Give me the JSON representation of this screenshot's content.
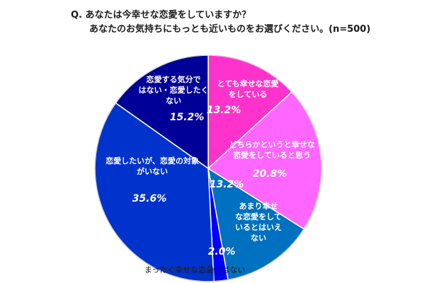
{
  "header": {
    "q_prefix": "Q.",
    "line1": "あなたは今幸せな恋愛をしていますか？",
    "line2": "あなたのお気持ちにもっとも近いものをお選びください。(n=500)"
  },
  "chart_data": {
    "type": "pie",
    "slices": [
      {
        "label_lines": [
          "とても幸せな恋愛",
          "をしている"
        ],
        "value": 13.2,
        "value_label": "13.2%",
        "color": "#ff33cc"
      },
      {
        "label_lines": [
          "どちらかというと幸せな",
          "恋愛をしていると思う"
        ],
        "value": 20.8,
        "value_label": "20.8%",
        "color": "#ff66ff"
      },
      {
        "label_lines": [
          "あまり幸せ",
          "な恋愛をして",
          "いるとはいえ",
          "ない"
        ],
        "value": 13.2,
        "value_label": "13.2%",
        "color": "#0070c0"
      },
      {
        "label_lines": [
          "まったく幸せな恋愛ではない"
        ],
        "value": 2.0,
        "value_label": "2.0%",
        "color": "#0000ff"
      },
      {
        "label_lines": [
          "恋愛したいが、恋愛の対象",
          "がいない"
        ],
        "value": 35.6,
        "value_label": "35.6%",
        "color": "#0033cc"
      },
      {
        "label_lines": [
          "恋愛する気分で",
          "はない・恋愛したく",
          "ない"
        ],
        "value": 15.2,
        "value_label": "15.2%",
        "color": "#000099"
      }
    ],
    "start_angle_deg": 0,
    "direction": "clockwise"
  }
}
